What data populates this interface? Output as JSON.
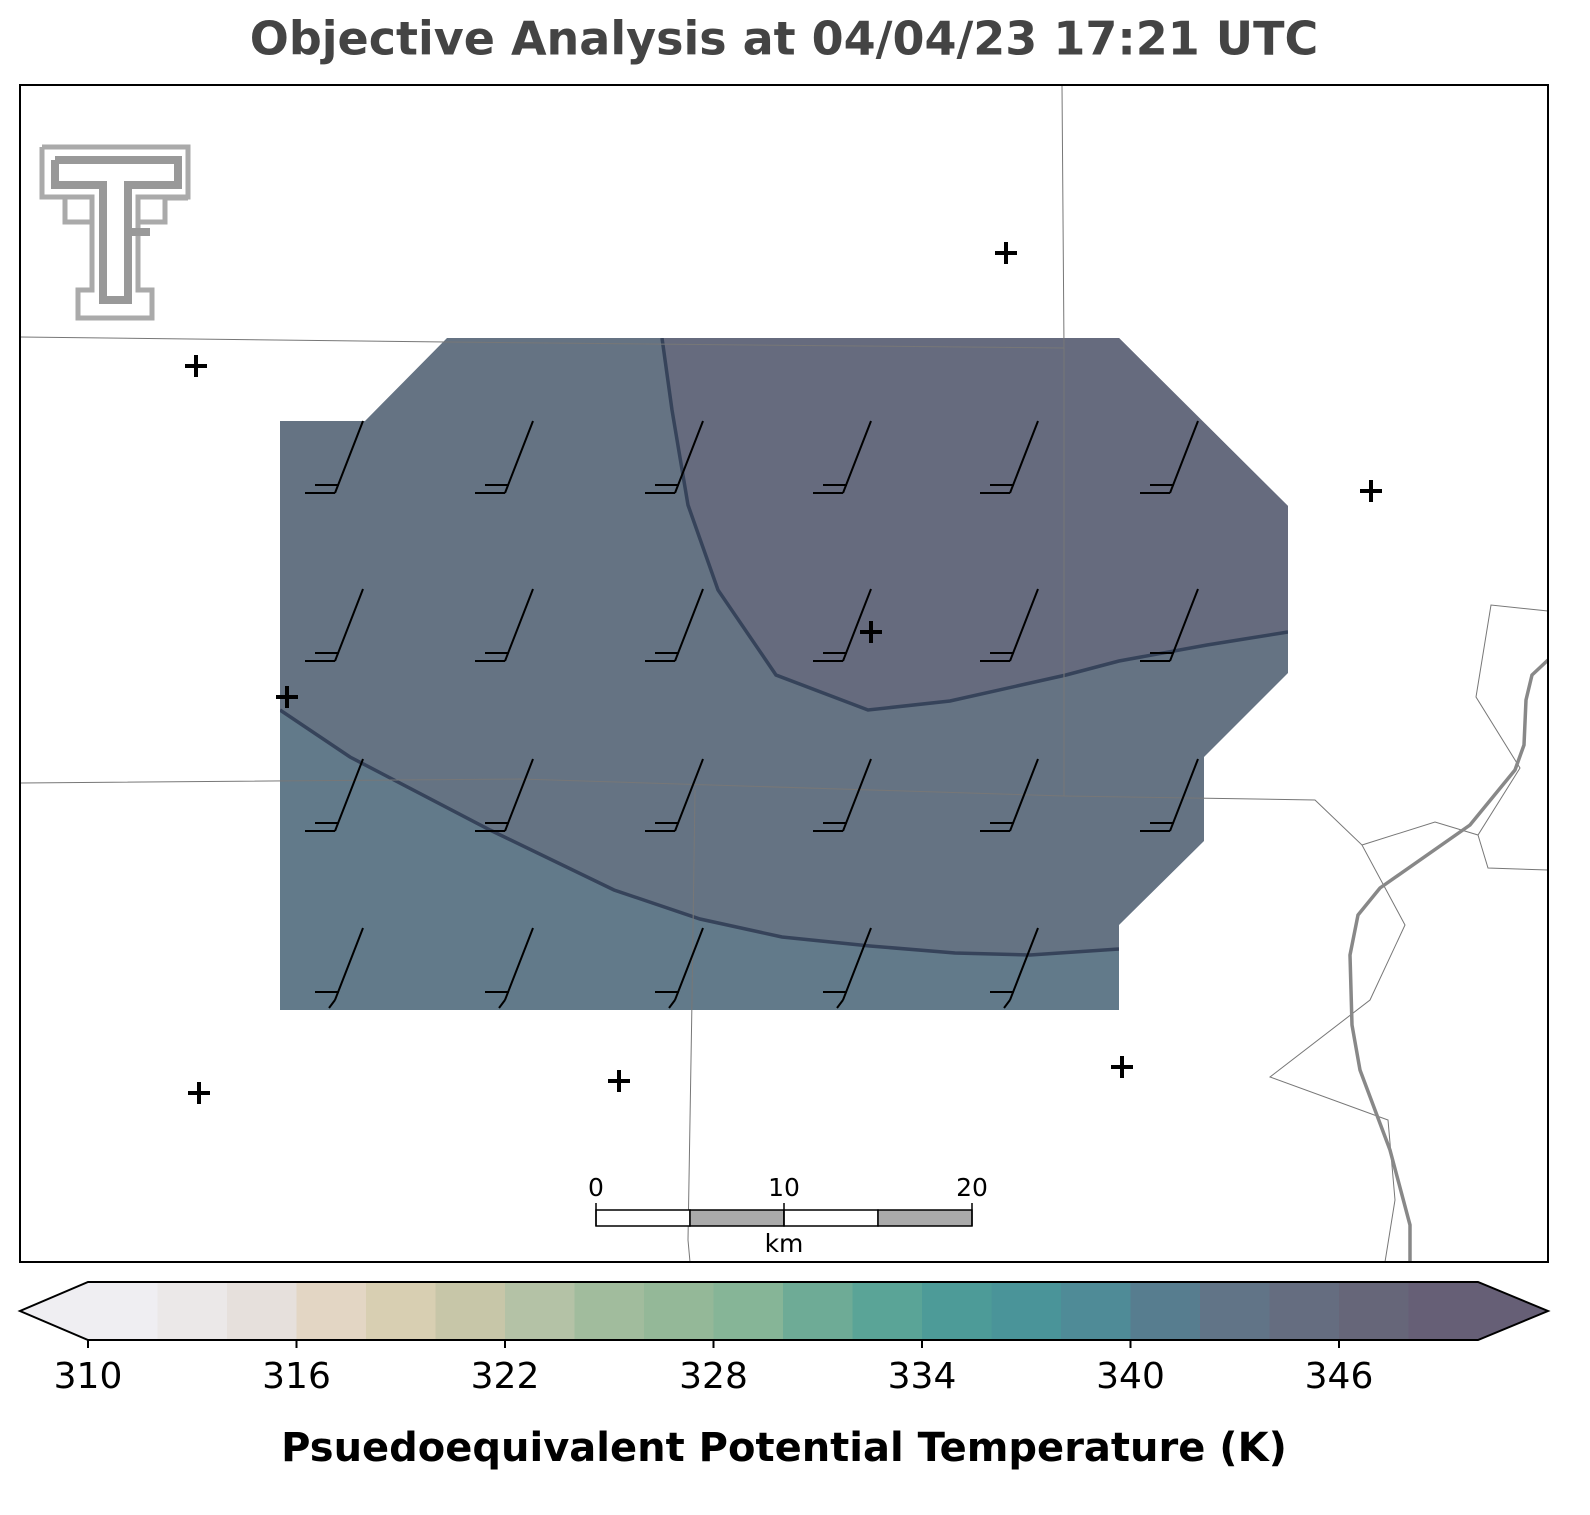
{
  "title": "Objective Analysis at 04/04/23 17:21 UTC",
  "colorbar": {
    "label": "Psuedoequivalent Potential Temperature (K)",
    "lim": [
      310,
      350
    ],
    "ticks": [
      310,
      316,
      322,
      328,
      334,
      340,
      346
    ],
    "colors": [
      "#efeef2",
      "#ebe8e8",
      "#e6e0dc",
      "#e3d6c4",
      "#d8cfb2",
      "#c7c6a8",
      "#b4c2a6",
      "#a1bc9d",
      "#94b898",
      "#86b597",
      "#6eab96",
      "#5aa497",
      "#4d9b98",
      "#4a9499",
      "#4f8b97",
      "#577d8f",
      "#617487",
      "#656d80",
      "#666679",
      "#665f76"
    ]
  },
  "scale_bar": {
    "lim": [
      0,
      20
    ],
    "ticks": [
      0,
      10,
      20
    ],
    "unit": "km"
  }
}
